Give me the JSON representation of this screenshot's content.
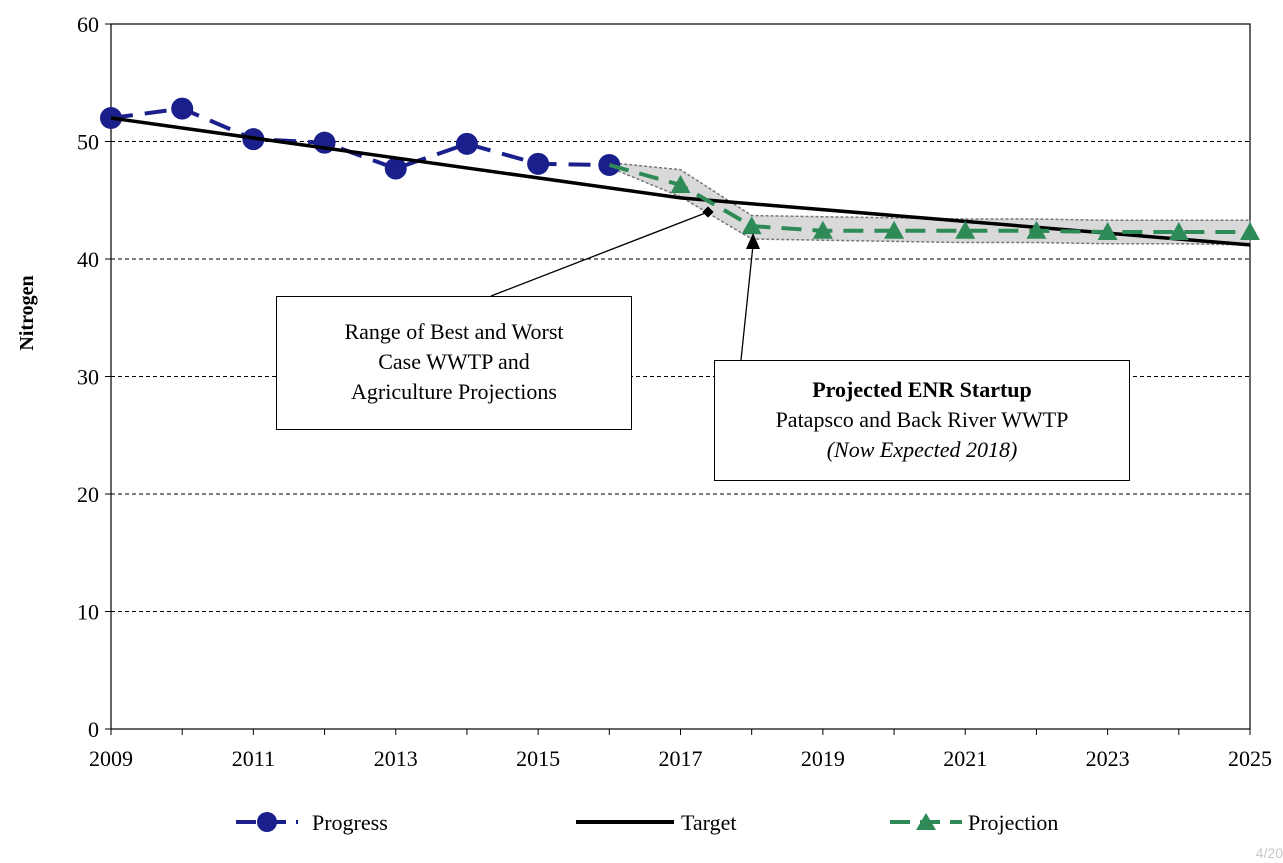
{
  "chart_data": {
    "type": "line",
    "title": "",
    "xlabel": "",
    "ylabel": "Nitrogen",
    "xlim": [
      2009,
      2025
    ],
    "ylim": [
      0,
      60
    ],
    "x_ticks": [
      "2009",
      "2011",
      "2013",
      "2015",
      "2017",
      "2019",
      "2021",
      "2023",
      "2025"
    ],
    "y_ticks": [
      "0",
      "10",
      "20",
      "30",
      "40",
      "50",
      "60"
    ],
    "grid": "horizontal dashed",
    "legend_position": "bottom",
    "series": [
      {
        "name": "Progress",
        "style": "dashed with circle markers",
        "color": "#1a1f8c",
        "x": [
          2009,
          2010,
          2011,
          2012,
          2013,
          2014,
          2015,
          2016
        ],
        "y": [
          52.0,
          52.8,
          50.2,
          49.9,
          47.7,
          49.8,
          48.1,
          48.0
        ]
      },
      {
        "name": "Target",
        "style": "solid",
        "color": "#000000",
        "x": [
          2009,
          2017,
          2025
        ],
        "y": [
          52.0,
          45.2,
          41.2
        ]
      },
      {
        "name": "Projection",
        "style": "dashed with triangle markers",
        "color": "#2e8b57",
        "x": [
          2016,
          2017,
          2018,
          2019,
          2020,
          2021,
          2022,
          2023,
          2024,
          2025
        ],
        "y": [
          48.0,
          46.3,
          42.8,
          42.4,
          42.4,
          42.4,
          42.4,
          42.3,
          42.3,
          42.3
        ]
      }
    ],
    "range_band": {
      "color": "#d9d9d9",
      "x": [
        2016,
        2017,
        2018,
        2019,
        2020,
        2021,
        2022,
        2023,
        2024,
        2025
      ],
      "upper": [
        48.2,
        47.6,
        43.7,
        43.6,
        43.5,
        43.4,
        43.4,
        43.3,
        43.3,
        43.3
      ],
      "lower": [
        47.8,
        45.3,
        41.7,
        41.6,
        41.5,
        41.4,
        41.4,
        41.3,
        41.3,
        41.2
      ]
    },
    "annotations": {
      "range_box": [
        "Range of Best and Worst",
        "Case WWTP and",
        "Agriculture Projections"
      ],
      "enr_box": {
        "title": "Projected ENR Startup",
        "line2": "Patapsco and Back River WWTP",
        "line3": "(Now Expected 2018)"
      }
    }
  },
  "page_number": "4/20"
}
